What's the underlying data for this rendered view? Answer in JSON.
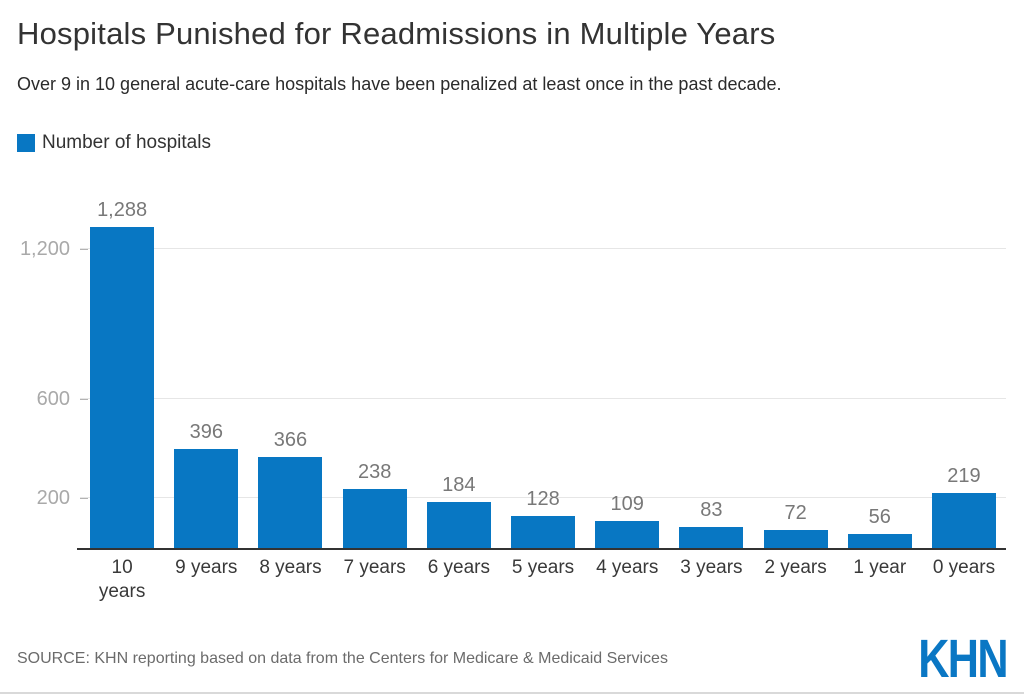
{
  "header": {
    "title": "Hospitals Punished for Readmissions in Multiple Years",
    "subtitle": "Over 9 in 10 general acute-care hospitals have been penalized at least once in the past decade."
  },
  "legend": {
    "label": "Number of hospitals"
  },
  "chart_data": {
    "type": "bar",
    "title": "Hospitals Punished for Readmissions in Multiple Years",
    "subtitle": "Over 9 in 10 general acute-care hospitals have been penalized at least once in the past decade.",
    "series_name": "Number of hospitals",
    "categories": [
      "10\nyears",
      "9 years",
      "8 years",
      "7 years",
      "6 years",
      "5 years",
      "4 years",
      "3 years",
      "2 years",
      "1 year",
      "0 years"
    ],
    "values": [
      1288,
      396,
      366,
      238,
      184,
      128,
      109,
      83,
      72,
      56,
      219
    ],
    "value_labels": [
      "1,288",
      "396",
      "366",
      "238",
      "184",
      "128",
      "109",
      "83",
      "72",
      "56",
      "219"
    ],
    "xlabel": "",
    "ylabel": "",
    "y_ticks": [
      200,
      600,
      1200
    ],
    "y_tick_labels": [
      "200",
      "600",
      "1,200"
    ],
    "ylim": [
      0,
      1438
    ],
    "grid": true,
    "legend_position": "top-left",
    "bar_color": "#0877c3"
  },
  "colors": {
    "bar": "#0877c3",
    "logo": "#0a77c4",
    "gridline": "#e6e6e6",
    "axis": "#333333"
  },
  "footer": {
    "source": "SOURCE: KHN reporting based on data from the Centers for Medicare & Medicaid Services",
    "logo": "KHN"
  }
}
